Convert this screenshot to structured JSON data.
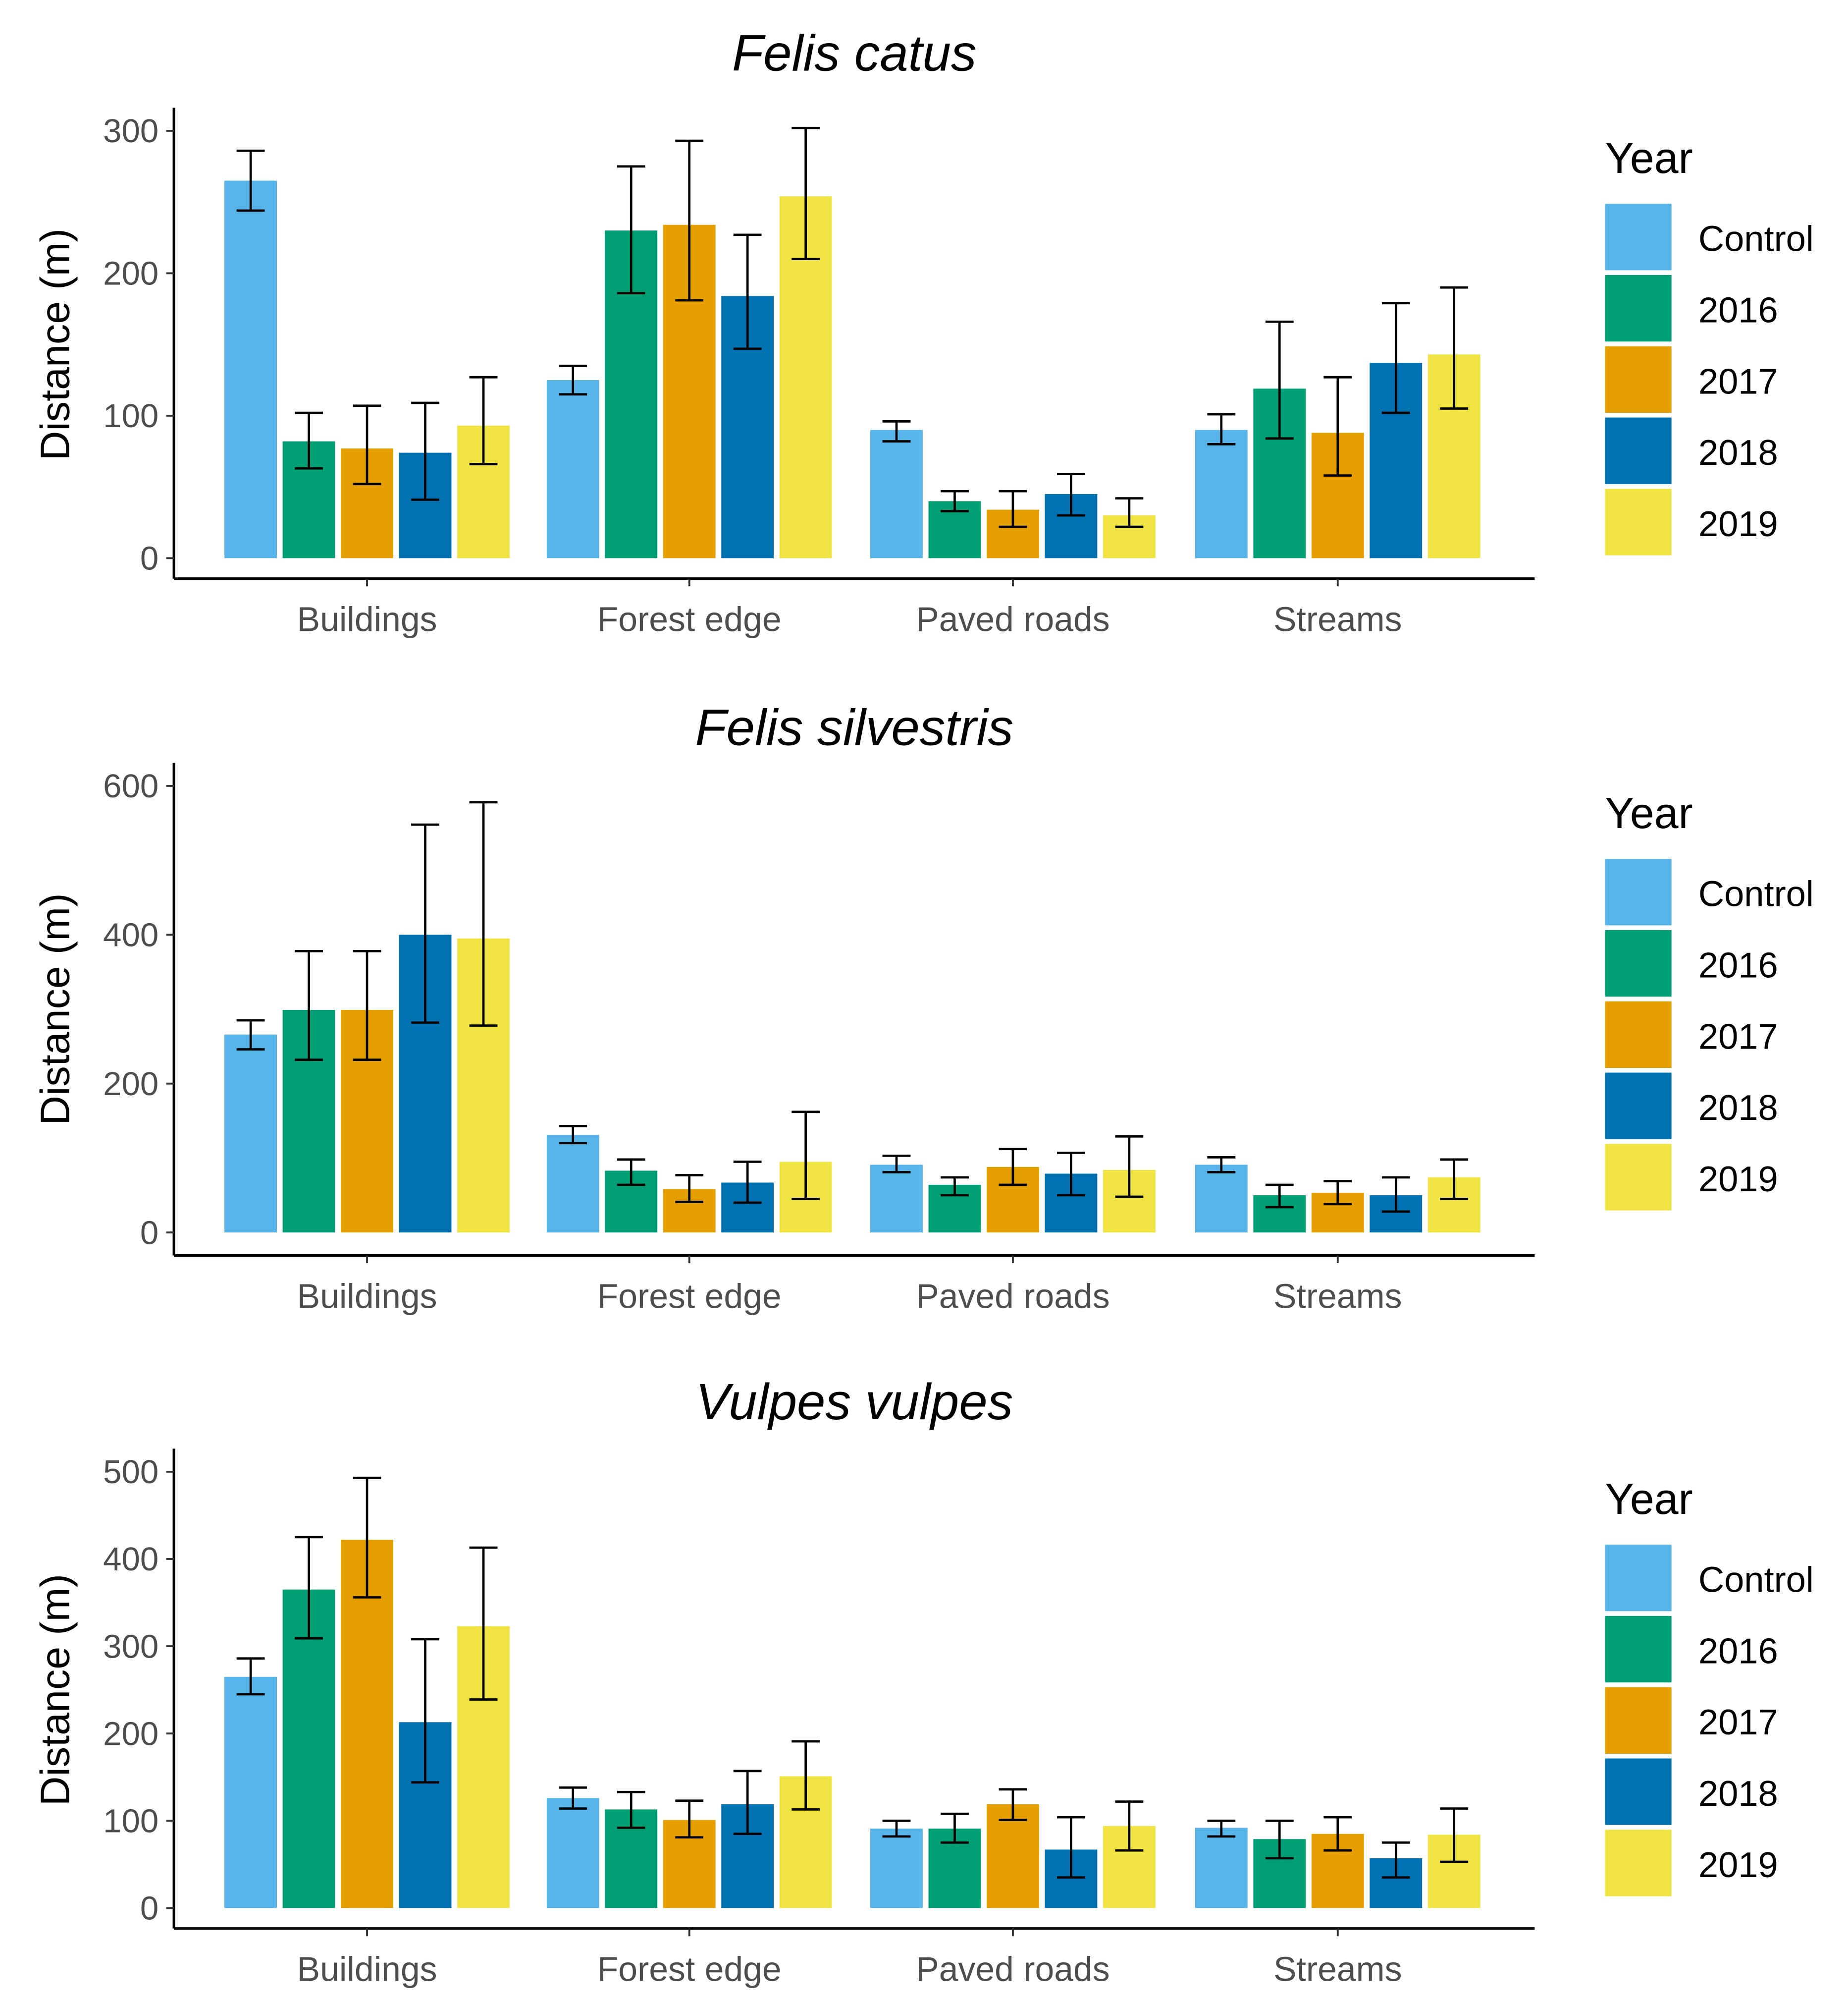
{
  "colors": {
    "Control": "#56B4E9",
    "2016": "#009E73",
    "2017": "#E69F00",
    "2018": "#0072B2",
    "2019": "#F0E442"
  },
  "chart_data": [
    {
      "type": "bar",
      "title": "Felis catus",
      "ylabel": "Distance (m)",
      "xlabel": "",
      "ylim": [
        0,
        300
      ],
      "yticks": [
        0,
        100,
        200,
        300
      ],
      "legend_title": "Year",
      "legend_position": "right",
      "categories": [
        "Buildings",
        "Forest edge",
        "Paved roads",
        "Streams"
      ],
      "series": [
        {
          "name": "Control",
          "values": [
            265,
            125,
            90,
            90
          ],
          "err_low": [
            244,
            115,
            82,
            80
          ],
          "err_high": [
            286,
            135,
            96,
            101
          ]
        },
        {
          "name": "2016",
          "values": [
            82,
            230,
            40,
            119
          ],
          "err_low": [
            63,
            186,
            33,
            84
          ],
          "err_high": [
            102,
            275,
            47,
            166
          ]
        },
        {
          "name": "2017",
          "values": [
            77,
            234,
            34,
            88
          ],
          "err_low": [
            52,
            181,
            22,
            58
          ],
          "err_high": [
            107,
            293,
            47,
            127
          ]
        },
        {
          "name": "2018",
          "values": [
            74,
            184,
            45,
            137
          ],
          "err_low": [
            41,
            147,
            30,
            102
          ],
          "err_high": [
            109,
            227,
            59,
            179
          ]
        },
        {
          "name": "2019",
          "values": [
            93,
            254,
            30,
            143
          ],
          "err_low": [
            66,
            210,
            22,
            105
          ],
          "err_high": [
            127,
            302,
            42,
            190
          ]
        }
      ]
    },
    {
      "type": "bar",
      "title": "Felis silvestris",
      "ylabel": "Distance (m)",
      "xlabel": "",
      "ylim": [
        0,
        600
      ],
      "yticks": [
        0,
        200,
        400,
        600
      ],
      "legend_title": "Year",
      "legend_position": "right",
      "categories": [
        "Buildings",
        "Forest edge",
        "Paved roads",
        "Streams"
      ],
      "series": [
        {
          "name": "Control",
          "values": [
            266,
            131,
            91,
            91
          ],
          "err_low": [
            246,
            120,
            81,
            81
          ],
          "err_high": [
            285,
            143,
            103,
            101
          ]
        },
        {
          "name": "2016",
          "values": [
            299,
            83,
            64,
            50
          ],
          "err_low": [
            232,
            64,
            50,
            34
          ],
          "err_high": [
            378,
            98,
            74,
            64
          ]
        },
        {
          "name": "2017",
          "values": [
            299,
            58,
            88,
            53
          ],
          "err_low": [
            232,
            41,
            64,
            38
          ],
          "err_high": [
            378,
            77,
            112,
            69
          ]
        },
        {
          "name": "2018",
          "values": [
            400,
            67,
            79,
            50
          ],
          "err_low": [
            282,
            40,
            50,
            28
          ],
          "err_high": [
            548,
            95,
            107,
            74
          ]
        },
        {
          "name": "2019",
          "values": [
            395,
            95,
            84,
            74
          ],
          "err_low": [
            278,
            45,
            48,
            45
          ],
          "err_high": [
            578,
            162,
            129,
            98
          ]
        }
      ]
    },
    {
      "type": "bar",
      "title": "Vulpes vulpes",
      "ylabel": "Distance (m)",
      "xlabel": "",
      "ylim": [
        0,
        500
      ],
      "yticks": [
        0,
        100,
        200,
        300,
        400,
        500
      ],
      "legend_title": "Year",
      "legend_position": "right",
      "categories": [
        "Buildings",
        "Forest edge",
        "Paved roads",
        "Streams"
      ],
      "series": [
        {
          "name": "Control",
          "values": [
            265,
            126,
            91,
            92
          ],
          "err_low": [
            245,
            114,
            82,
            82
          ],
          "err_high": [
            286,
            138,
            100,
            100
          ]
        },
        {
          "name": "2016",
          "values": [
            365,
            113,
            91,
            79
          ],
          "err_low": [
            309,
            92,
            75,
            57
          ],
          "err_high": [
            425,
            133,
            108,
            100
          ]
        },
        {
          "name": "2017",
          "values": [
            422,
            101,
            119,
            85
          ],
          "err_low": [
            356,
            81,
            101,
            66
          ],
          "err_high": [
            493,
            123,
            136,
            104
          ]
        },
        {
          "name": "2018",
          "values": [
            213,
            119,
            67,
            57
          ],
          "err_low": [
            144,
            85,
            35,
            35
          ],
          "err_high": [
            308,
            157,
            104,
            75
          ]
        },
        {
          "name": "2019",
          "values": [
            323,
            151,
            94,
            84
          ],
          "err_low": [
            239,
            113,
            66,
            53
          ],
          "err_high": [
            413,
            191,
            122,
            114
          ]
        }
      ]
    }
  ]
}
